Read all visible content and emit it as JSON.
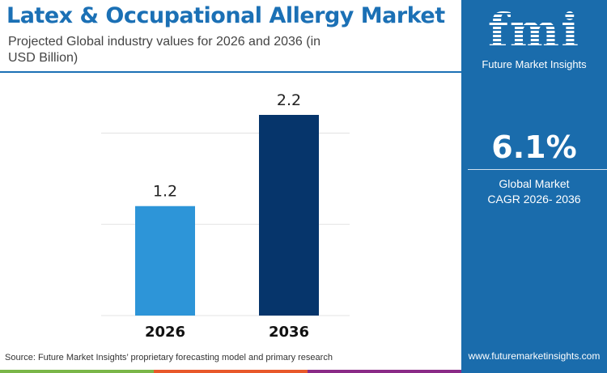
{
  "header": {
    "title": "Latex & Occupational Allergy Market",
    "subtitle": "Projected Global industry values for 2026 and 2036 (in USD Billion)"
  },
  "chart_data": {
    "type": "bar",
    "categories": [
      "2026",
      "2036"
    ],
    "values": [
      1.2,
      2.2
    ],
    "data_labels": [
      "1.2",
      "2.2"
    ],
    "ylim": [
      0,
      2.2
    ],
    "gridlines": [
      1,
      2
    ],
    "grid": true,
    "colors": [
      "#2d95d8",
      "#06356b"
    ],
    "title": "Latex & Occupational Allergy Market",
    "xlabel": "",
    "ylabel": ""
  },
  "footer": {
    "source": "Source: Future Market Insights’ proprietary forecasting model and primary research",
    "stripe_colors": [
      "#7ab648",
      "#e8582a",
      "#8a2b87"
    ]
  },
  "panel": {
    "logo_text": "fmi",
    "brand": "Future Market Insights",
    "cagr": "6.1%",
    "cagr_label_1": "Global Market",
    "cagr_label_2": "CAGR 2026- 2036",
    "url": "www.futuremarketinsights.com",
    "bg": "#1a6cac"
  }
}
